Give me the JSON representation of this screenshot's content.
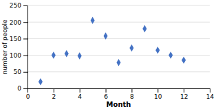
{
  "chart_data": {
    "type": "scatter",
    "xlabel": "Month",
    "ylabel": "number of people",
    "x": [
      1,
      2,
      3,
      4,
      5,
      6,
      7,
      8,
      9,
      10,
      11,
      12
    ],
    "values": [
      20,
      100,
      105,
      98,
      205,
      158,
      78,
      122,
      180,
      115,
      100,
      85
    ],
    "color": "#4472c4",
    "marker": "diamond",
    "xlim": [
      0,
      14
    ],
    "ylim": [
      0,
      250
    ],
    "xticks": [
      0,
      2,
      4,
      6,
      8,
      10,
      12,
      14
    ],
    "yticks": [
      0,
      50,
      100,
      150,
      200,
      250
    ],
    "grid": "y"
  }
}
